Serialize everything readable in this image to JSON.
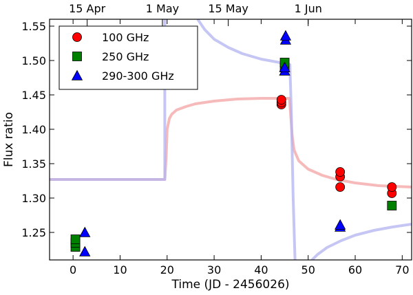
{
  "chart_data": {
    "type": "scatter",
    "xlabel": "Time (JD - 2456026)",
    "ylabel": "Flux ratio",
    "xlim": [
      -5,
      72
    ],
    "ylim": [
      1.21,
      1.56
    ],
    "x_ticks": [
      0,
      10,
      20,
      30,
      40,
      50,
      60,
      70
    ],
    "y_ticks": [
      1.25,
      1.3,
      1.35,
      1.4,
      1.45,
      1.5,
      1.55
    ],
    "top_axis_ticks": [
      {
        "label": "15 Apr",
        "x": 3
      },
      {
        "label": "1 May",
        "x": 19
      },
      {
        "label": "15 May",
        "x": 33
      },
      {
        "label": "1 Jun",
        "x": 50
      }
    ],
    "legend_position": "upper-left",
    "series": [
      {
        "name": "100 GHz",
        "marker": "circle",
        "color": "#ff0000",
        "points": [
          [
            44.3,
            1.436
          ],
          [
            44.3,
            1.439
          ],
          [
            44.3,
            1.443
          ],
          [
            56.8,
            1.316
          ],
          [
            56.8,
            1.331
          ],
          [
            56.8,
            1.338
          ],
          [
            67.8,
            1.307
          ],
          [
            67.8,
            1.316
          ]
        ]
      },
      {
        "name": "250 GHz",
        "marker": "square",
        "color": "#008000",
        "points": [
          [
            0.5,
            1.229
          ],
          [
            0.5,
            1.235
          ],
          [
            0.5,
            1.24
          ],
          [
            45.0,
            1.49
          ],
          [
            45.0,
            1.497
          ],
          [
            67.8,
            1.289
          ]
        ]
      },
      {
        "name": "290-300 GHz",
        "marker": "triangle",
        "color": "#0000ff",
        "points": [
          [
            2.5,
            1.222
          ],
          [
            2.5,
            1.25
          ],
          [
            45.0,
            1.485
          ],
          [
            45.0,
            1.49
          ],
          [
            45.2,
            1.53
          ],
          [
            45.2,
            1.536
          ],
          [
            56.8,
            1.258
          ],
          [
            56.8,
            1.261
          ]
        ]
      }
    ],
    "model_curves": [
      {
        "color": "#f4a3a3",
        "points": [
          [
            -5,
            1.327
          ],
          [
            19.5,
            1.327
          ],
          [
            19.8,
            1.36
          ],
          [
            20.0,
            1.4
          ],
          [
            20.5,
            1.416
          ],
          [
            21,
            1.422
          ],
          [
            22,
            1.428
          ],
          [
            24,
            1.433
          ],
          [
            26,
            1.437
          ],
          [
            30,
            1.441
          ],
          [
            35,
            1.444
          ],
          [
            40,
            1.445
          ],
          [
            46,
            1.445
          ],
          [
            46.3,
            1.42
          ],
          [
            46.6,
            1.39
          ],
          [
            47,
            1.37
          ],
          [
            48,
            1.354
          ],
          [
            50,
            1.342
          ],
          [
            53,
            1.333
          ],
          [
            56,
            1.327
          ],
          [
            60,
            1.322
          ],
          [
            65,
            1.318
          ],
          [
            72,
            1.316
          ]
        ]
      },
      {
        "color": "#b3b3f2",
        "points": [
          [
            -5,
            1.327
          ],
          [
            19.5,
            1.327
          ],
          [
            19.5,
            1.56
          ]
        ]
      },
      {
        "color": "#b3b3f2",
        "points": [
          [
            26.5,
            1.56
          ],
          [
            28,
            1.545
          ],
          [
            30,
            1.531
          ],
          [
            33,
            1.519
          ],
          [
            36,
            1.51
          ],
          [
            40,
            1.502
          ],
          [
            44,
            1.497
          ],
          [
            46.1,
            1.494
          ],
          [
            46.4,
            1.43
          ],
          [
            46.8,
            1.3
          ],
          [
            47.2,
            1.21
          ]
        ]
      },
      {
        "color": "#b3b3f2",
        "points": [
          [
            50.8,
            1.21
          ],
          [
            52,
            1.218
          ],
          [
            54,
            1.228
          ],
          [
            57,
            1.238
          ],
          [
            60,
            1.246
          ],
          [
            64,
            1.253
          ],
          [
            68,
            1.258
          ],
          [
            72,
            1.262
          ]
        ]
      }
    ]
  }
}
